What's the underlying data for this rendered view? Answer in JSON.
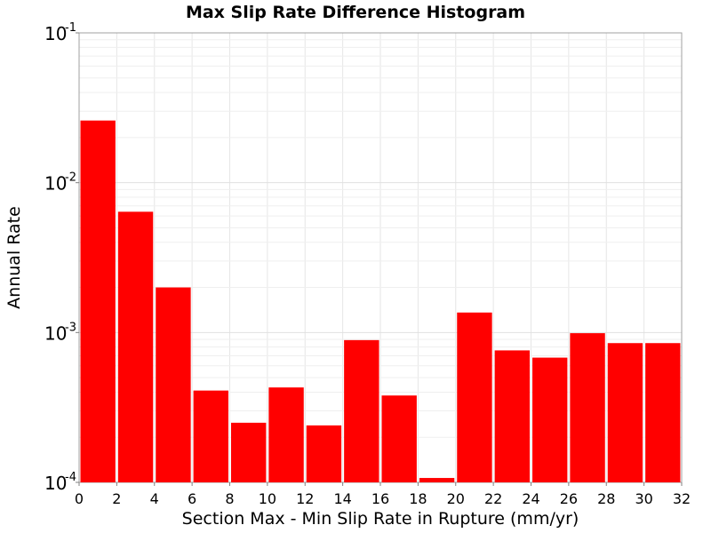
{
  "chart_data": {
    "type": "bar",
    "title": "Max Slip Rate Difference Histogram",
    "xlabel": "Section Max - Min Slip Rate in Rupture (mm/yr)",
    "ylabel": "Annual Rate",
    "y_scale": "log",
    "xlim": [
      0,
      32
    ],
    "ylim": [
      0.0001,
      0.1
    ],
    "bin_width": 2,
    "x": [
      1,
      3,
      5,
      7,
      9,
      11,
      13,
      15,
      17,
      19,
      21,
      23,
      25,
      27,
      29,
      31
    ],
    "values": [
      0.026,
      0.0064,
      0.002,
      0.00041,
      0.00025,
      0.00043,
      0.00024,
      0.00089,
      0.00038,
      0.000107,
      0.00136,
      0.00076,
      0.00068,
      0.00099,
      0.00085,
      0.00085
    ],
    "bar_color": "#ff0000",
    "x_ticks": [
      {
        "value": 0,
        "label": "0"
      },
      {
        "value": 2,
        "label": "2"
      },
      {
        "value": 4,
        "label": "4"
      },
      {
        "value": 6,
        "label": "6"
      },
      {
        "value": 8,
        "label": "8"
      },
      {
        "value": 10,
        "label": "10"
      },
      {
        "value": 12,
        "label": "12"
      },
      {
        "value": 14,
        "label": "14"
      },
      {
        "value": 16,
        "label": "16"
      },
      {
        "value": 18,
        "label": "18"
      },
      {
        "value": 20,
        "label": "20"
      },
      {
        "value": 22,
        "label": "22"
      },
      {
        "value": 24,
        "label": "24"
      },
      {
        "value": 26,
        "label": "26"
      },
      {
        "value": 28,
        "label": "28"
      },
      {
        "value": 30,
        "label": "30"
      },
      {
        "value": 32,
        "label": "32"
      }
    ],
    "y_ticks": [
      {
        "value": 0.1,
        "base": "10",
        "exp": "-1"
      },
      {
        "value": 0.01,
        "base": "10",
        "exp": "-2"
      },
      {
        "value": 0.001,
        "base": "10",
        "exp": "-3"
      },
      {
        "value": 0.0001,
        "base": "10",
        "exp": "-4"
      }
    ],
    "grid": true,
    "legend": "none"
  }
}
